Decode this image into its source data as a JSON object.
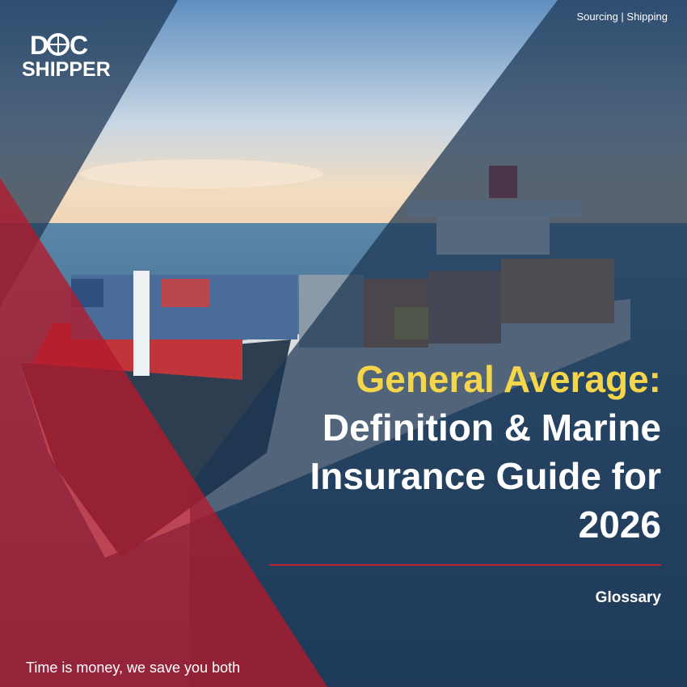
{
  "logo": {
    "left": "D",
    "right": "C",
    "bottom": "SHIPPER"
  },
  "tagline": "Sourcing | Shipping",
  "title": {
    "highlight": "General Average:",
    "lines": [
      "Definition & Marine",
      "Insurance Guide for",
      "2026"
    ]
  },
  "category": "Glossary",
  "footer": "Time is money, we save you both"
}
